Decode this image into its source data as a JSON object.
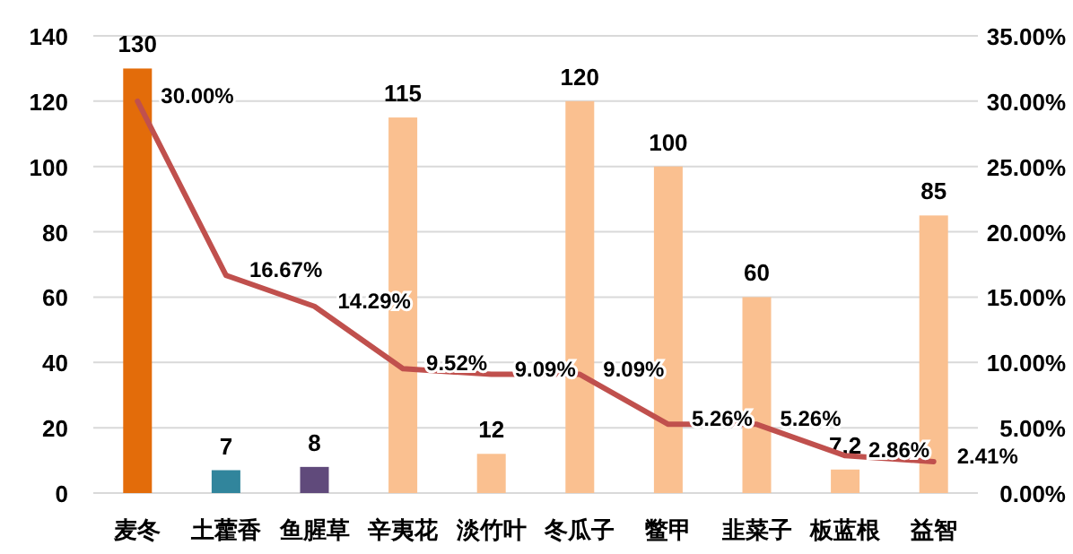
{
  "chart_data": {
    "type": "bar",
    "categories": [
      "麦冬",
      "土藿香",
      "鱼腥草",
      "辛夷花",
      "淡竹叶",
      "冬瓜子",
      "鳖甲",
      "韭菜子",
      "板蓝根",
      "益智"
    ],
    "series": [
      {
        "colors": [
          "#e36c0a",
          "#31859c",
          "#604a7b",
          "#fac090",
          "#fac090",
          "#fac090",
          "#fac090",
          "#fac090",
          "#fac090",
          "#fac090"
        ],
        "values": [
          130,
          7,
          8,
          115,
          12,
          120,
          100,
          60,
          7.2,
          85
        ],
        "value_labels": [
          "130",
          "7",
          "8",
          "115",
          "12",
          "120",
          "100",
          "60",
          "7.2",
          "85"
        ]
      },
      {
        "type": "line",
        "axis": "y2",
        "color": "#c0504d",
        "values": [
          30.0,
          16.67,
          14.29,
          9.52,
          9.09,
          9.09,
          5.26,
          5.26,
          2.86,
          2.41
        ],
        "value_labels": [
          "30.00%",
          "16.67%",
          "14.29%",
          "9.52%",
          "9.09%",
          "9.09%",
          "5.26%",
          "5.26%",
          "2.86%",
          "2.41%"
        ]
      }
    ],
    "ylim": [
      0,
      140
    ],
    "yticks": [
      0,
      20,
      40,
      60,
      80,
      100,
      120,
      140
    ],
    "y2lim": [
      0,
      35
    ],
    "y2ticks": [
      {
        "value": 0,
        "label": "0.00%"
      },
      {
        "value": 5,
        "label": "5.00%"
      },
      {
        "value": 10,
        "label": "10.00%"
      },
      {
        "value": 15,
        "label": "15.00%"
      },
      {
        "value": 20,
        "label": "20.00%"
      },
      {
        "value": 25,
        "label": "25.00%"
      },
      {
        "value": 30,
        "label": "30.00%"
      },
      {
        "value": 35,
        "label": "35.00%"
      }
    ],
    "grid": "y"
  }
}
